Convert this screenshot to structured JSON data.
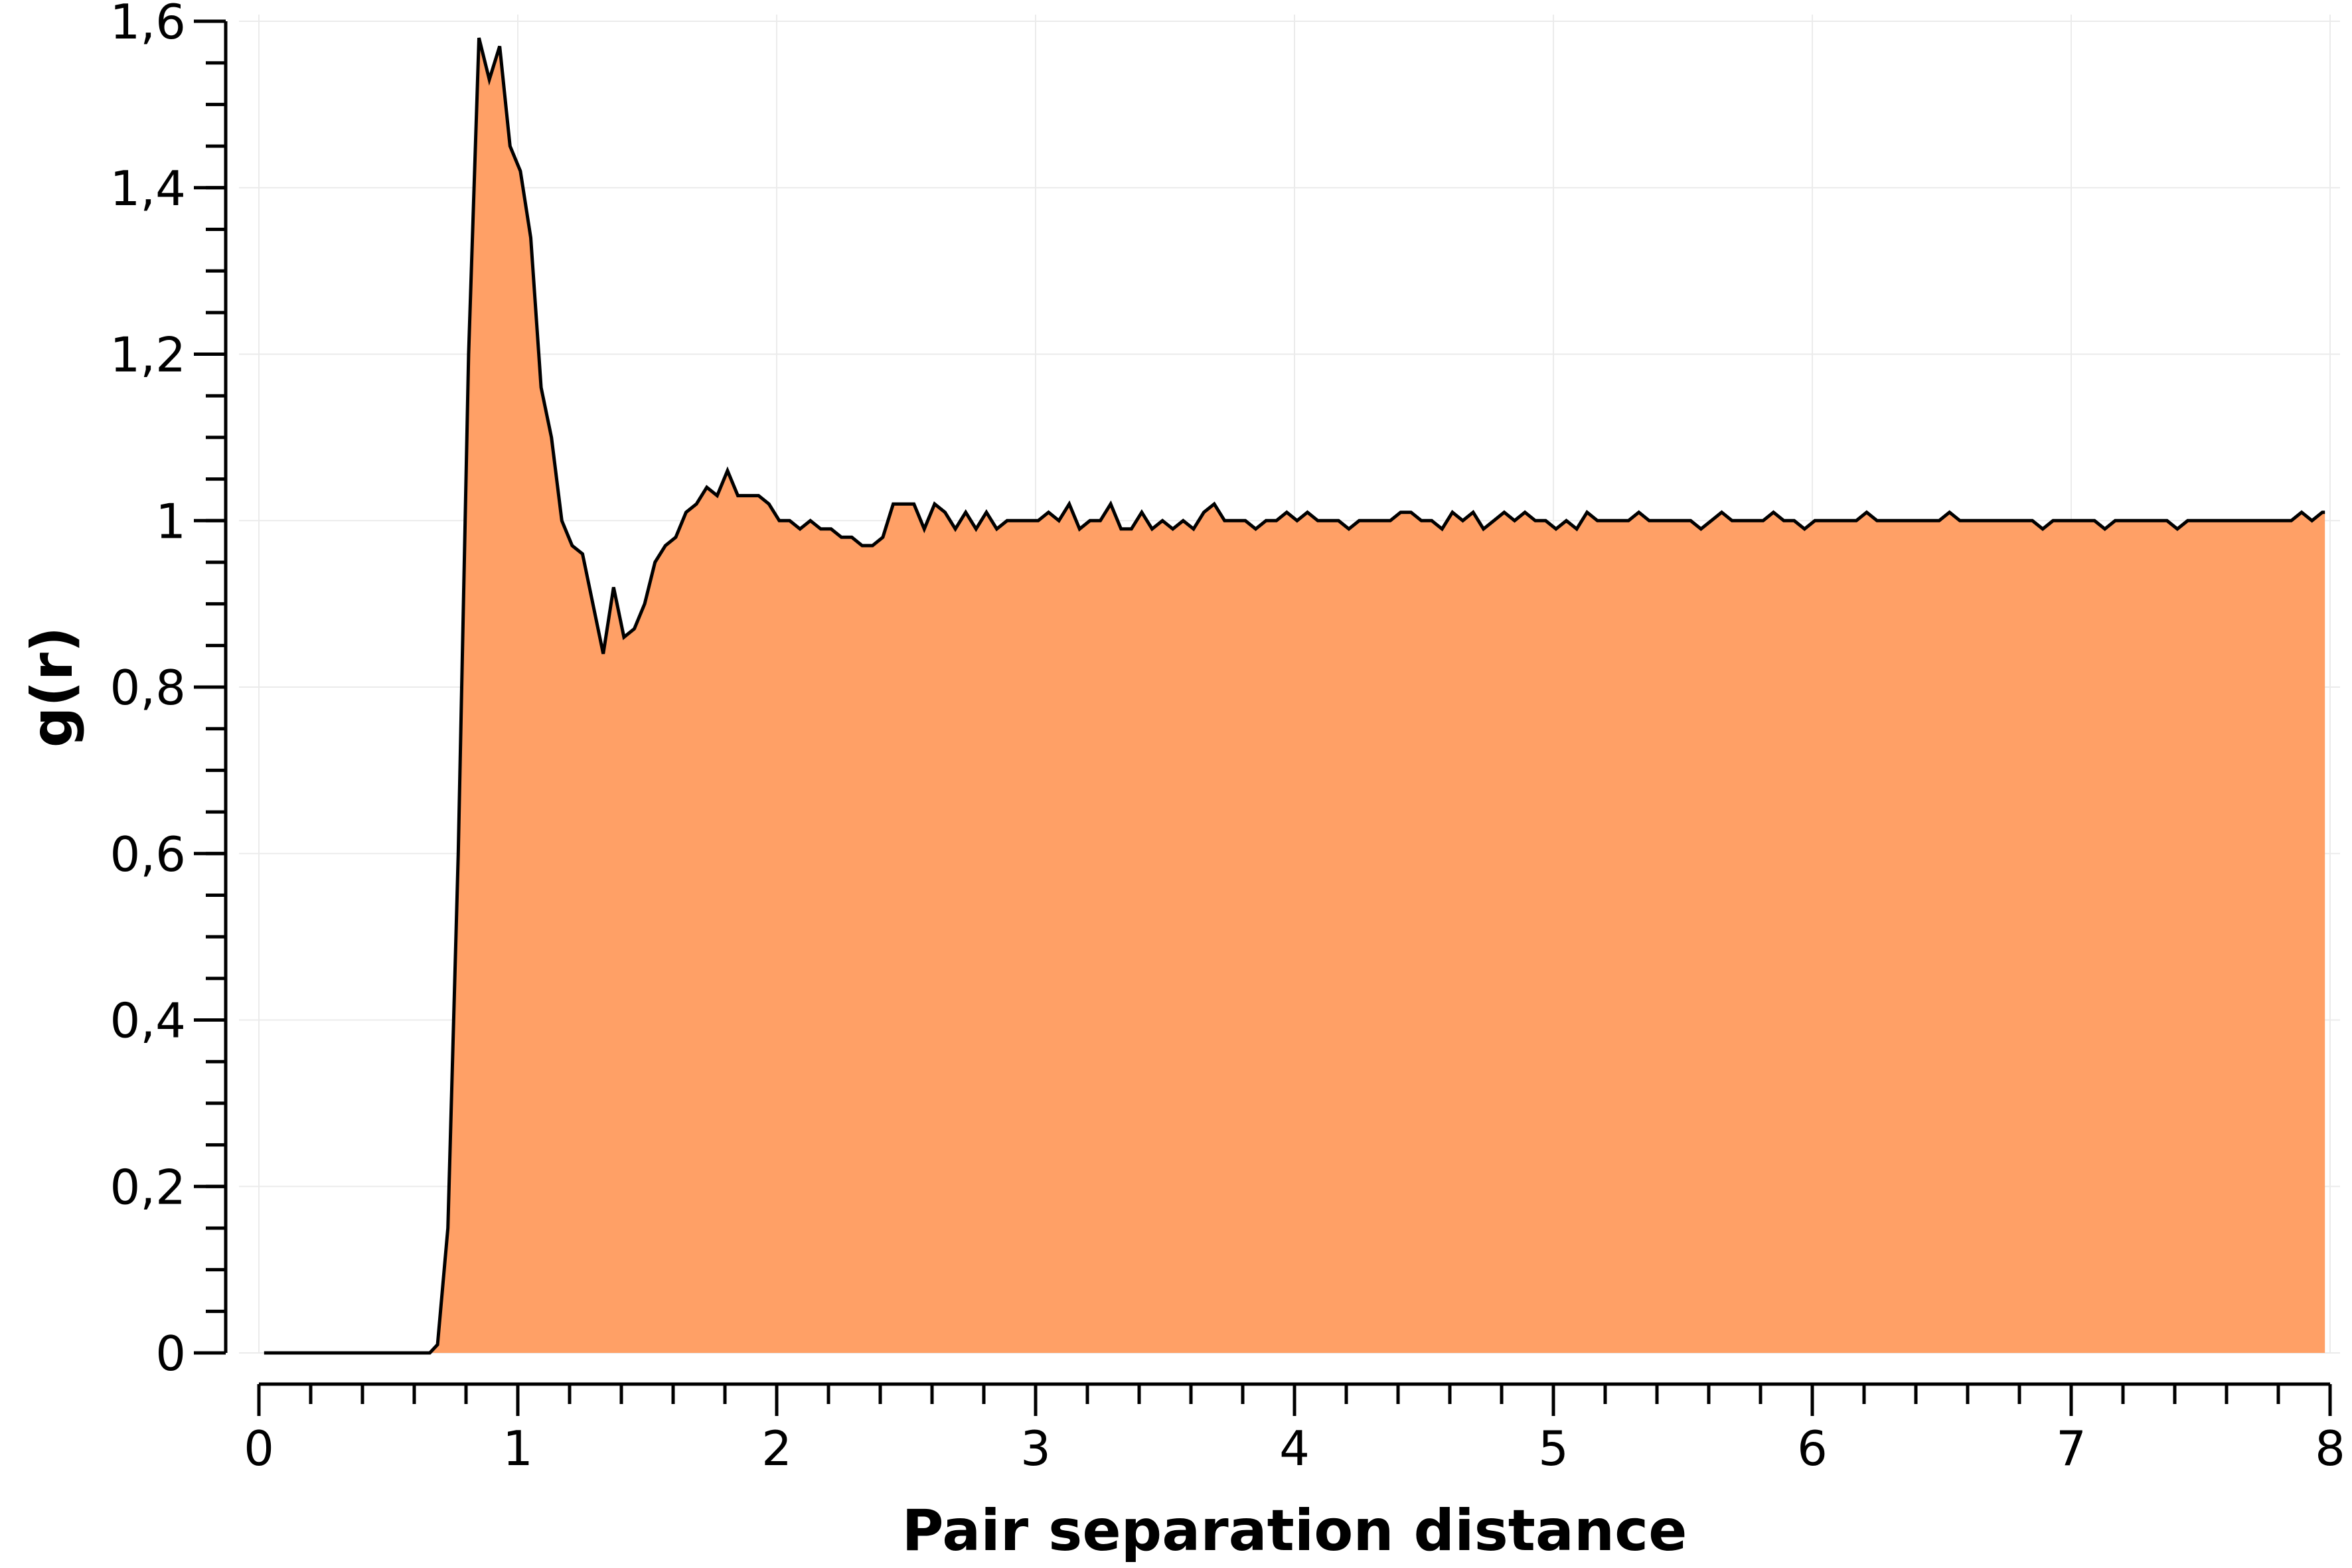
{
  "chart_data": {
    "type": "area",
    "xlabel": "Pair separation distance",
    "ylabel": "g(r)",
    "xlim": [
      0,
      8
    ],
    "ylim": [
      0,
      1.6
    ],
    "x_ticks": [
      {
        "value": 0,
        "label": "0"
      },
      {
        "value": 1,
        "label": "1"
      },
      {
        "value": 2,
        "label": "2"
      },
      {
        "value": 3,
        "label": "3"
      },
      {
        "value": 4,
        "label": "4"
      },
      {
        "value": 5,
        "label": "5"
      },
      {
        "value": 6,
        "label": "6"
      },
      {
        "value": 7,
        "label": "7"
      },
      {
        "value": 8,
        "label": "8"
      }
    ],
    "y_ticks": [
      {
        "value": 0,
        "label": "0"
      },
      {
        "value": 0.2,
        "label": "0,2"
      },
      {
        "value": 0.4,
        "label": "0,4"
      },
      {
        "value": 0.6,
        "label": "0,6"
      },
      {
        "value": 0.8,
        "label": "0,8"
      },
      {
        "value": 1,
        "label": "1"
      },
      {
        "value": 1.2,
        "label": "1,2"
      },
      {
        "value": 1.4,
        "label": "1,4"
      },
      {
        "value": 1.6,
        "label": "1,6"
      }
    ],
    "x_minor_step": 0.2,
    "y_minor_step": 0.05,
    "grid": true,
    "fill_color": "#ffa066",
    "line_color": "#000000",
    "series": [
      {
        "x": [
          0.02,
          0.66,
          0.69,
          0.73,
          0.77,
          0.81,
          0.85,
          0.89,
          0.93,
          0.97,
          1.01,
          1.05,
          1.09,
          1.13,
          1.17,
          1.21,
          1.25,
          1.29,
          1.33,
          1.37,
          1.41,
          1.45,
          1.49,
          1.53,
          1.57,
          1.61,
          1.65,
          1.69,
          1.73,
          1.77,
          1.81,
          1.85,
          1.89,
          1.93,
          1.97,
          2.01,
          2.05,
          2.09,
          2.13,
          2.17,
          2.21,
          2.25,
          2.29,
          2.33,
          2.37,
          2.41,
          2.45,
          2.49,
          2.53,
          2.57,
          2.61,
          2.65,
          2.69,
          2.73,
          2.77,
          2.81,
          2.85,
          2.89,
          2.93,
          2.97,
          3.01,
          3.05,
          3.09,
          3.13,
          3.17,
          3.21,
          3.25,
          3.29,
          3.33,
          3.37,
          3.41,
          3.45,
          3.49,
          3.53,
          3.57,
          3.61,
          3.65,
          3.69,
          3.73,
          3.77,
          3.81,
          3.85,
          3.89,
          3.93,
          3.97,
          4.01,
          4.05,
          4.09,
          4.13,
          4.17,
          4.21,
          4.25,
          4.29,
          4.33,
          4.37,
          4.41,
          4.45,
          4.49,
          4.53,
          4.57,
          4.61,
          4.65,
          4.69,
          4.73,
          4.77,
          4.81,
          4.85,
          4.89,
          4.93,
          4.97,
          5.01,
          5.05,
          5.09,
          5.13,
          5.17,
          5.21,
          5.25,
          5.29,
          5.33,
          5.37,
          5.41,
          5.45,
          5.49,
          5.53,
          5.57,
          5.61,
          5.65,
          5.69,
          5.73,
          5.77,
          5.81,
          5.85,
          5.89,
          5.93,
          5.97,
          6.01,
          6.05,
          6.09,
          6.13,
          6.17,
          6.21,
          6.25,
          6.29,
          6.33,
          6.37,
          6.41,
          6.45,
          6.49,
          6.53,
          6.57,
          6.61,
          6.65,
          6.69,
          6.73,
          6.77,
          6.81,
          6.85,
          6.89,
          6.93,
          6.97,
          7.01,
          7.05,
          7.09,
          7.13,
          7.17,
          7.21,
          7.25,
          7.29,
          7.33,
          7.37,
          7.41,
          7.45,
          7.49,
          7.53,
          7.57,
          7.61,
          7.65,
          7.69,
          7.73,
          7.77,
          7.81,
          7.85,
          7.89,
          7.93,
          7.97,
          7.98
        ],
        "y": [
          0,
          0,
          0.01,
          0.15,
          0.6,
          1.2,
          1.58,
          1.53,
          1.57,
          1.45,
          1.42,
          1.34,
          1.16,
          1.1,
          1.0,
          0.97,
          0.96,
          0.9,
          0.84,
          0.92,
          0.86,
          0.87,
          0.9,
          0.95,
          0.97,
          0.98,
          1.01,
          1.02,
          1.04,
          1.03,
          1.06,
          1.03,
          1.03,
          1.03,
          1.02,
          1.0,
          1.0,
          0.99,
          1.0,
          0.99,
          0.99,
          0.98,
          0.98,
          0.97,
          0.97,
          0.98,
          1.02,
          1.02,
          1.02,
          0.99,
          1.02,
          1.01,
          0.99,
          1.01,
          0.99,
          1.01,
          0.99,
          1.0,
          1.0,
          1.0,
          1.0,
          1.01,
          1.0,
          1.02,
          0.99,
          1.0,
          1.0,
          1.02,
          0.99,
          0.99,
          1.01,
          0.99,
          1.0,
          0.99,
          1.0,
          0.99,
          1.01,
          1.02,
          1.0,
          1.0,
          1.0,
          0.99,
          1.0,
          1.0,
          1.01,
          1.0,
          1.01,
          1.0,
          1.0,
          1.0,
          0.99,
          1.0,
          1.0,
          1.0,
          1.0,
          1.01,
          1.01,
          1.0,
          1.0,
          0.99,
          1.01,
          1.0,
          1.01,
          0.99,
          1.0,
          1.01,
          1.0,
          1.01,
          1.0,
          1.0,
          0.99,
          1.0,
          0.99,
          1.01,
          1.0,
          1.0,
          1.0,
          1.0,
          1.01,
          1.0,
          1.0,
          1.0,
          1.0,
          1.0,
          0.99,
          1.0,
          1.01,
          1.0,
          1.0,
          1.0,
          1.0,
          1.01,
          1.0,
          1.0,
          0.99,
          1.0,
          1.0,
          1.0,
          1.0,
          1.0,
          1.01,
          1.0,
          1.0,
          1.0,
          1.0,
          1.0,
          1.0,
          1.0,
          1.01,
          1.0,
          1.0,
          1.0,
          1.0,
          1.0,
          1.0,
          1.0,
          1.0,
          0.99,
          1.0,
          1.0,
          1.0,
          1.0,
          1.0,
          0.99,
          1.0,
          1.0,
          1.0,
          1.0,
          1.0,
          1.0,
          0.99,
          1.0,
          1.0,
          1.0,
          1.0,
          1.0,
          1.0,
          1.0,
          1.0,
          1.0,
          1.0,
          1.0,
          1.01,
          1.0,
          1.01,
          1.01
        ]
      }
    ]
  }
}
